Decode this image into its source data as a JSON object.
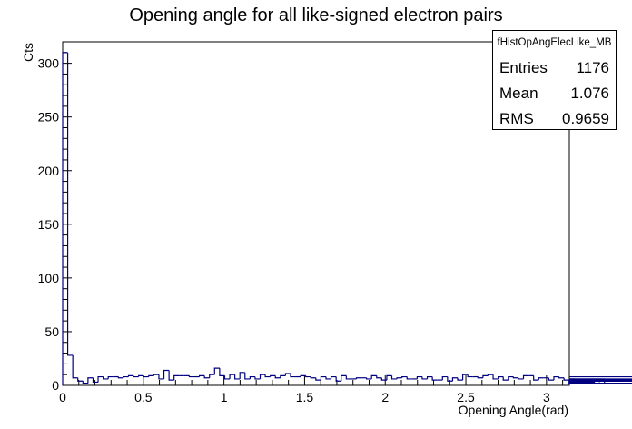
{
  "chart_data": {
    "type": "histogram",
    "title": "Opening angle for all like-signed electron pairs",
    "xlabel": "Opening Angle(rad)",
    "ylabel": "Cts",
    "xlim": [
      0,
      3.1416
    ],
    "ylim": [
      0,
      320
    ],
    "xticks": [
      0,
      0.5,
      1,
      1.5,
      2,
      2.5,
      3
    ],
    "xtick_labels": [
      "0",
      "0.5",
      "1",
      "1.5",
      "2",
      "2.5",
      "3"
    ],
    "yticks": [
      0,
      50,
      100,
      150,
      200,
      250,
      300
    ],
    "ytick_labels": [
      "0",
      "50",
      "100",
      "150",
      "200",
      "250",
      "300"
    ],
    "line_color": "#000080",
    "bin_width": 0.0314,
    "values": [
      310,
      28,
      7,
      4,
      2,
      7,
      3,
      8,
      6,
      8,
      8,
      7,
      8,
      9,
      8,
      9,
      8,
      9,
      10,
      6,
      14,
      5,
      9,
      9,
      9,
      8,
      8,
      9,
      7,
      10,
      16,
      9,
      6,
      10,
      6,
      12,
      6,
      8,
      6,
      10,
      8,
      9,
      7,
      9,
      11,
      8,
      8,
      9,
      8,
      7,
      5,
      8,
      6,
      8,
      4,
      9,
      6,
      6,
      7,
      7,
      6,
      9,
      7,
      5,
      9,
      6,
      7,
      8,
      6,
      6,
      8,
      6,
      8,
      5,
      5,
      8,
      4,
      7,
      5,
      10,
      8,
      8,
      7,
      9,
      10,
      6,
      8,
      5,
      8,
      7,
      6,
      9,
      9,
      5,
      7,
      7,
      5,
      8,
      7,
      5,
      2,
      6,
      5,
      3,
      2,
      3,
      2,
      6,
      4,
      5,
      4,
      5,
      5,
      5,
      2,
      5,
      8,
      4,
      4,
      6
    ]
  },
  "stats": {
    "name": "fHistOpAngElecLike_MB",
    "rows": [
      {
        "label": "Entries",
        "value": "1176"
      },
      {
        "label": "Mean",
        "value": "1.076"
      },
      {
        "label": "RMS",
        "value": "0.9659"
      }
    ]
  }
}
